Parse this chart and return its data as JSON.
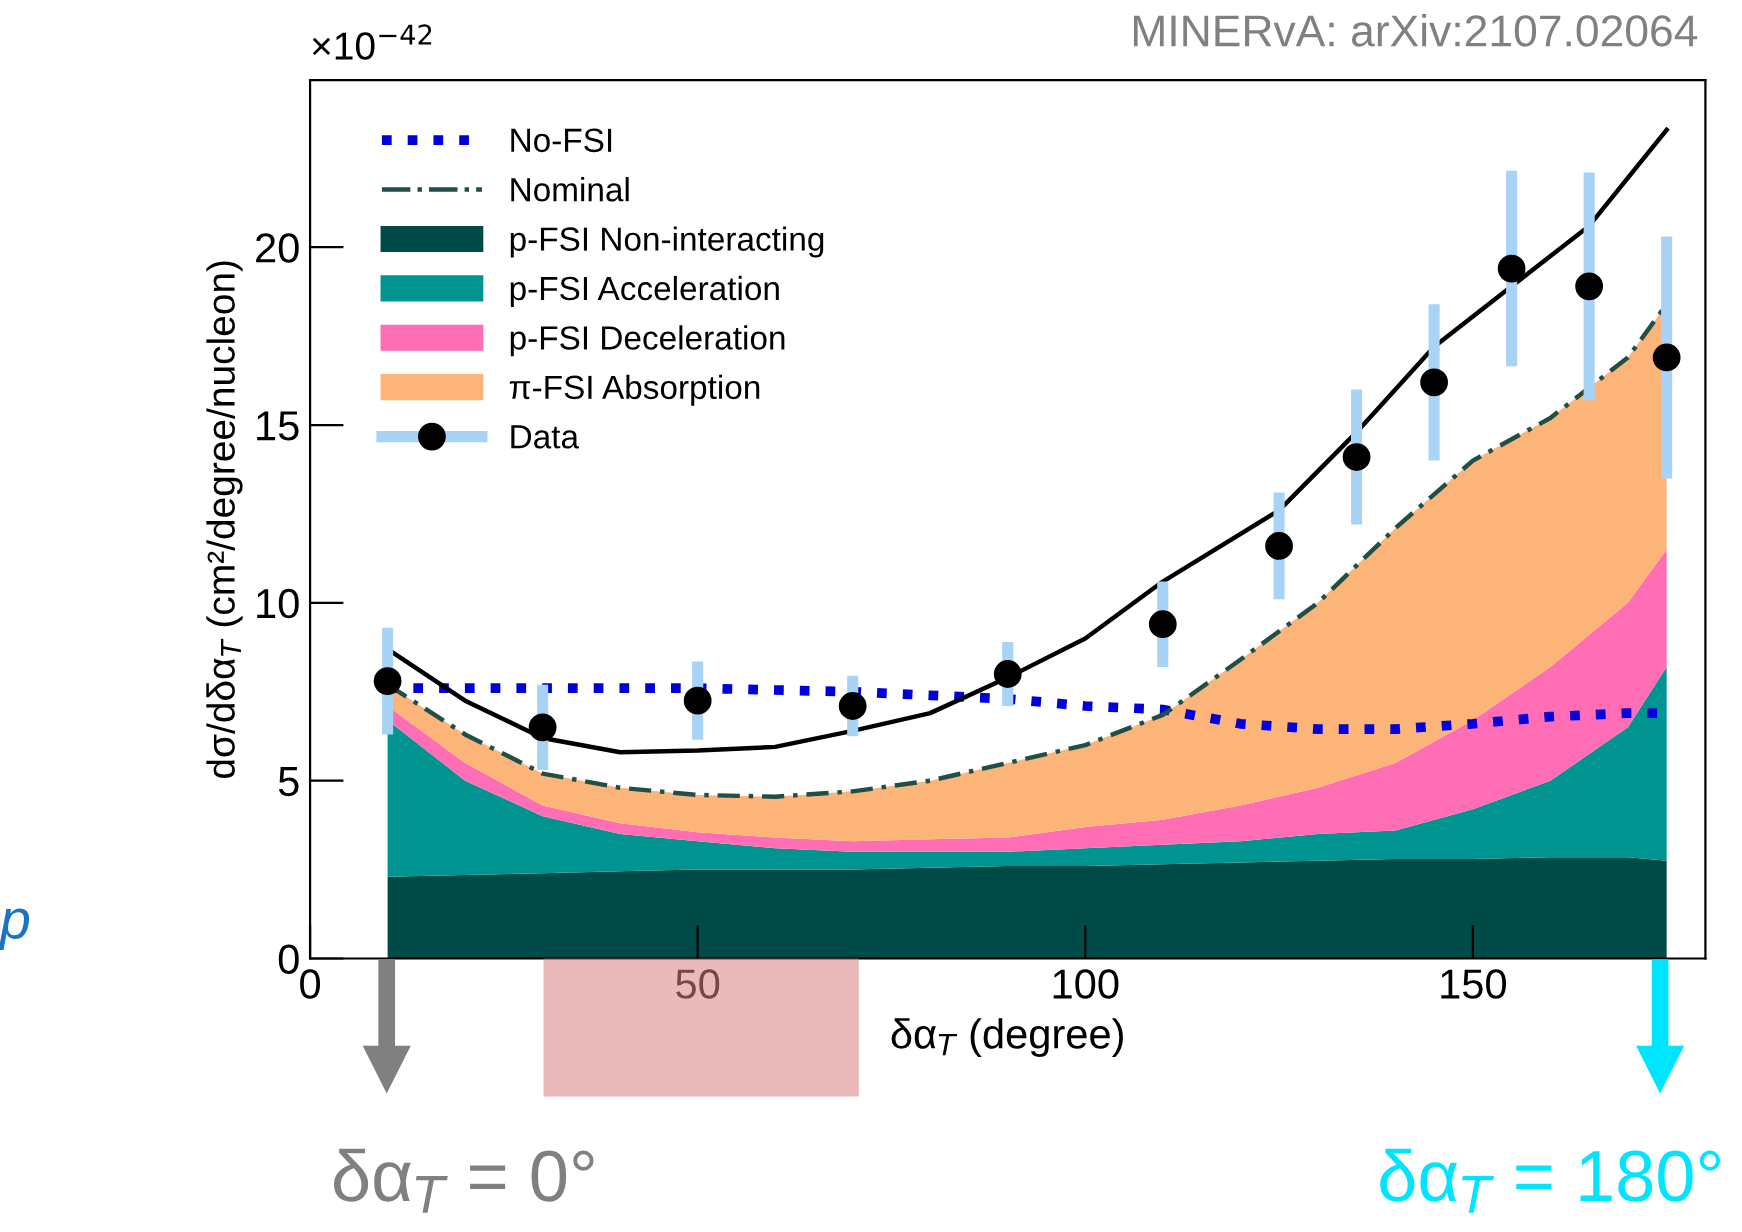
{
  "chart_data": {
    "type": "area",
    "stacked": true,
    "xlabel": "δα$_{T}$ (degree)",
    "ylabel": "dσ/dδα$_{T}$ (cm²/degree/nucleon)",
    "xlim": [
      0,
      180
    ],
    "xticks": [
      0,
      50,
      100,
      150
    ],
    "ylim": [
      0,
      24.7
    ],
    "yticks": [
      0,
      5,
      10,
      15,
      20
    ],
    "grid": false,
    "legend": "top left",
    "annotations": [
      "×10$^{−42}$",
      "MINERvA: arXiv:2107.02064",
      "p",
      "δα$_{T}$ = 0°",
      "δα$_{T}$ = 180°"
    ],
    "x": [
      10,
      20,
      30,
      40,
      50,
      60,
      70,
      80,
      90,
      100,
      110,
      120,
      130,
      140,
      150,
      160,
      170,
      175
    ],
    "series": [
      {
        "name": "p-FSI Non-interacting",
        "color": "#004a47",
        "values": [
          2.3,
          2.35,
          2.4,
          2.45,
          2.5,
          2.5,
          2.5,
          2.55,
          2.6,
          2.6,
          2.65,
          2.7,
          2.75,
          2.8,
          2.8,
          2.85,
          2.85,
          2.75
        ]
      },
      {
        "name": "p-FSI Acceleration",
        "color": "#009490",
        "values": [
          4.4,
          2.65,
          1.6,
          1.05,
          0.8,
          0.6,
          0.5,
          0.45,
          0.4,
          0.5,
          0.55,
          0.6,
          0.75,
          0.8,
          1.4,
          2.15,
          3.65,
          5.45
        ]
      },
      {
        "name": "p-FSI Deceleration",
        "color": "#ff6eb4",
        "values": [
          0.4,
          0.5,
          0.3,
          0.3,
          0.25,
          0.3,
          0.3,
          0.35,
          0.4,
          0.6,
          0.7,
          1.0,
          1.3,
          1.9,
          2.5,
          3.2,
          3.5,
          3.3
        ]
      },
      {
        "name": "π-FSI Absorption",
        "color": "#fdb478",
        "values": [
          0.6,
          0.8,
          0.9,
          1.0,
          1.05,
          1.15,
          1.4,
          1.65,
          2.1,
          2.3,
          2.95,
          4.1,
          5.2,
          6.6,
          7.3,
          7.0,
          6.9,
          6.9
        ]
      },
      {
        "name": "No-FSI",
        "type": "line",
        "line_style": "dotted",
        "color": "#0000dd",
        "values": [
          7.6,
          7.6,
          7.6,
          7.6,
          7.6,
          7.55,
          7.5,
          7.4,
          7.3,
          7.1,
          7.0,
          6.6,
          6.45,
          6.45,
          6.6,
          6.8,
          6.9,
          6.9
        ]
      },
      {
        "name": "Nominal",
        "type": "line",
        "line_style": "dashdot",
        "color": "#1f4f46",
        "values": [
          7.7,
          6.3,
          5.2,
          4.8,
          4.6,
          4.55,
          4.7,
          5.0,
          5.5,
          6.0,
          6.85,
          8.4,
          10.0,
          12.1,
          14.0,
          15.2,
          16.9,
          18.4
        ]
      },
      {
        "type": "line",
        "line_style": "solid",
        "color": "#000000",
        "x": [
          10,
          20,
          30,
          40,
          50,
          60,
          70,
          80,
          90,
          100,
          110,
          125,
          135,
          145,
          155,
          165,
          175
        ],
        "values": [
          8.7,
          7.25,
          6.2,
          5.8,
          5.85,
          5.95,
          6.4,
          6.9,
          7.9,
          9.0,
          10.6,
          12.6,
          14.8,
          17.2,
          18.9,
          20.6,
          23.3
        ]
      },
      {
        "name": "Data",
        "type": "scatter",
        "marker": "circle",
        "color": "#000000",
        "x": [
          10,
          30,
          50,
          70,
          90,
          110,
          125,
          135,
          145,
          155,
          165,
          175
        ],
        "values": [
          7.8,
          6.5,
          7.25,
          7.1,
          8.0,
          9.4,
          11.6,
          14.1,
          16.2,
          19.4,
          18.9,
          16.9
        ],
        "errors": [
          1.5,
          1.2,
          1.1,
          0.85,
          0.9,
          1.2,
          1.5,
          1.9,
          2.2,
          2.75,
          3.2,
          3.4
        ]
      }
    ]
  }
}
